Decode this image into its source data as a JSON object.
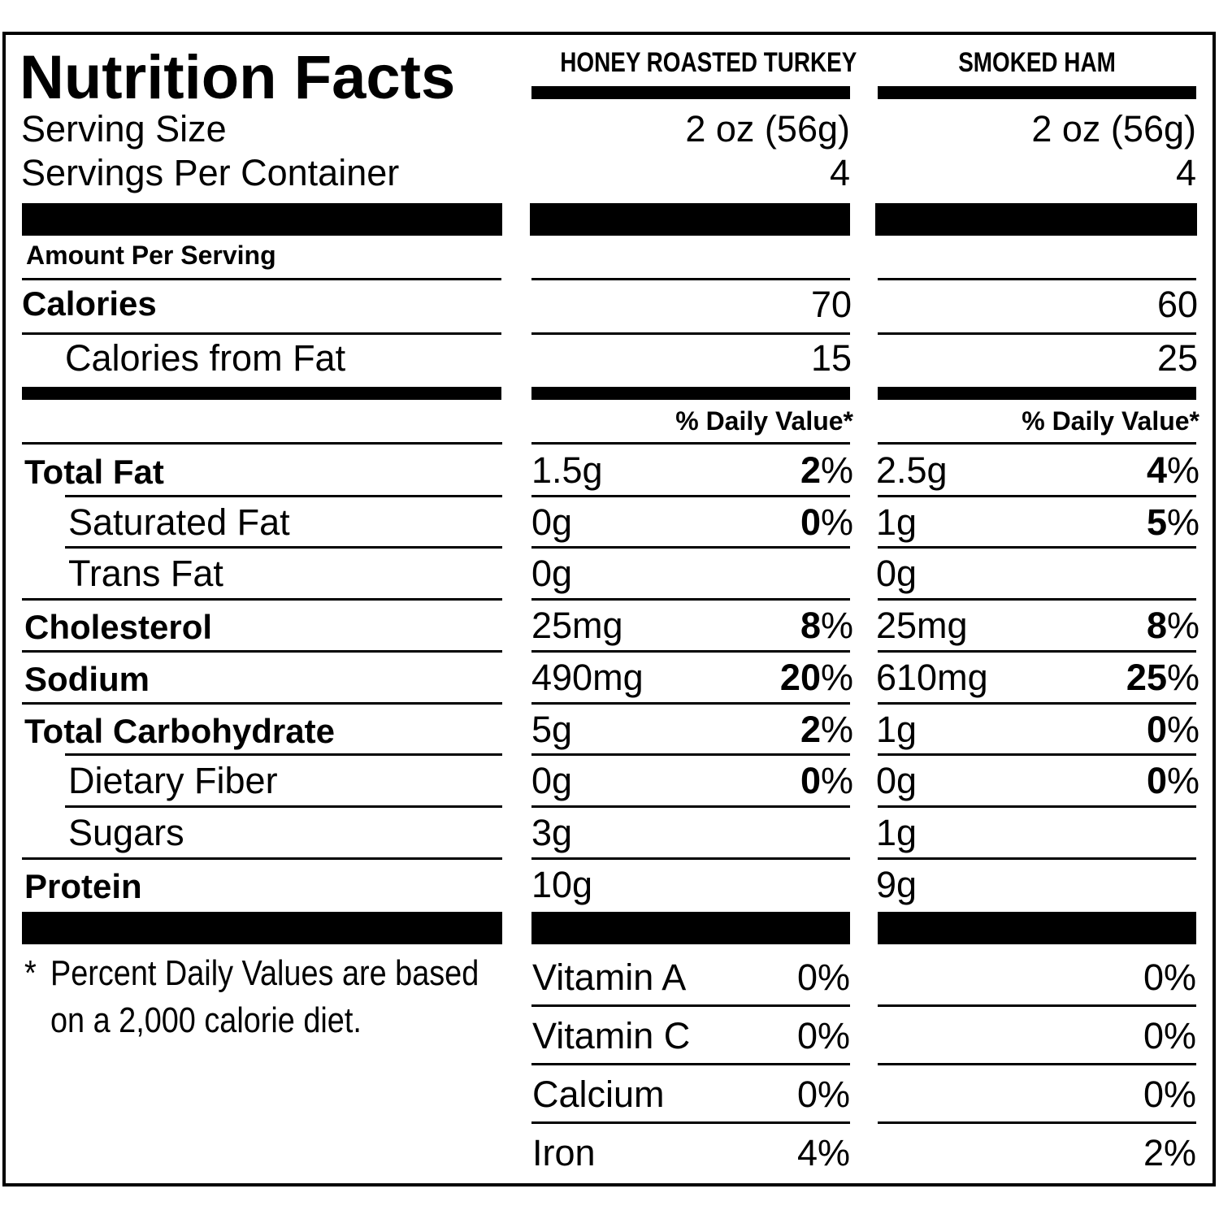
{
  "title": "Nutrition Facts",
  "columns": [
    "HONEY ROASTED TURKEY",
    "SMOKED HAM"
  ],
  "serving_size": {
    "label": "Serving Size",
    "values": [
      "2 oz (56g)",
      "2 oz (56g)"
    ]
  },
  "servings_per_container": {
    "label": "Servings Per Container",
    "values": [
      "4",
      "4"
    ]
  },
  "amount_per_serving": "Amount Per Serving",
  "calories": {
    "label": "Calories",
    "values": [
      "70",
      "60"
    ]
  },
  "calories_from_fat": {
    "label": "Calories from Fat",
    "values": [
      "15",
      "25"
    ]
  },
  "daily_value_header": "% Daily Value*",
  "pct": "%",
  "nutrients": [
    {
      "label": "Total Fat",
      "bold": true,
      "indent": false,
      "turkey_amt": "1.5g",
      "turkey_dv": "2",
      "ham_amt": "2.5g",
      "ham_dv": "4"
    },
    {
      "label": "Saturated Fat",
      "bold": false,
      "indent": true,
      "turkey_amt": "0g",
      "turkey_dv": "0",
      "ham_amt": "1g",
      "ham_dv": "5"
    },
    {
      "label": "Trans Fat",
      "bold": false,
      "indent": true,
      "turkey_amt": "0g",
      "turkey_dv": "",
      "ham_amt": "0g",
      "ham_dv": ""
    },
    {
      "label": "Cholesterol",
      "bold": true,
      "indent": false,
      "turkey_amt": "25mg",
      "turkey_dv": "8",
      "ham_amt": "25mg",
      "ham_dv": "8"
    },
    {
      "label": "Sodium",
      "bold": true,
      "indent": false,
      "turkey_amt": "490mg",
      "turkey_dv": "20",
      "ham_amt": "610mg",
      "ham_dv": "25"
    },
    {
      "label": "Total Carbohydrate",
      "bold": true,
      "indent": false,
      "turkey_amt": "5g",
      "turkey_dv": "2",
      "ham_amt": "1g",
      "ham_dv": "0"
    },
    {
      "label": "Dietary Fiber",
      "bold": false,
      "indent": true,
      "turkey_amt": "0g",
      "turkey_dv": "0",
      "ham_amt": "0g",
      "ham_dv": "0"
    },
    {
      "label": "Sugars",
      "bold": false,
      "indent": true,
      "turkey_amt": "3g",
      "turkey_dv": "",
      "ham_amt": "1g",
      "ham_dv": ""
    },
    {
      "label": "Protein",
      "bold": true,
      "indent": false,
      "turkey_amt": "10g",
      "turkey_dv": "",
      "ham_amt": "9g",
      "ham_dv": ""
    }
  ],
  "footnote": {
    "star": "*",
    "line1": "Percent Daily Values are based",
    "line2": "on a 2,000 calorie diet."
  },
  "vitamins": [
    {
      "label": "Vitamin A",
      "turkey": "0%",
      "ham": "0%"
    },
    {
      "label": "Vitamin C",
      "turkey": "0%",
      "ham": "0%"
    },
    {
      "label": "Calcium",
      "turkey": "0%",
      "ham": "0%"
    },
    {
      "label": "Iron",
      "turkey": "4%",
      "ham": "2%"
    }
  ]
}
